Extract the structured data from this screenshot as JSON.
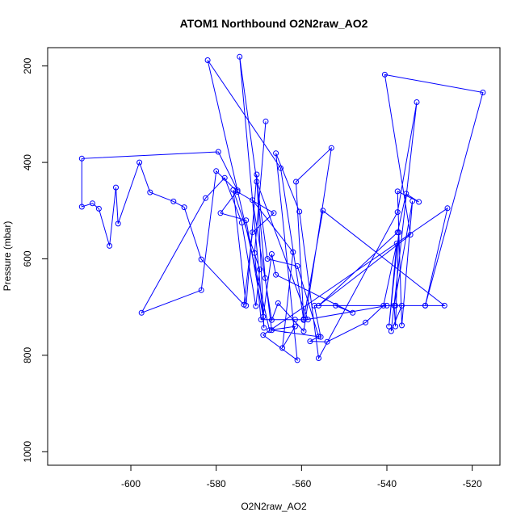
{
  "chart_data": {
    "type": "scatter",
    "title": "ATOM1 Northbound O2N2raw_AO2",
    "xlabel": "O2N2raw_AO2",
    "ylabel": "Pressure (mbar)",
    "xlim": [
      -619.5,
      -513.5
    ],
    "ylim": [
      1028,
      162
    ],
    "y_reversed": true,
    "grid": false,
    "legend": "none",
    "x_ticks": [
      -600,
      -580,
      -560,
      -540,
      -520
    ],
    "y_ticks": [
      200,
      400,
      600,
      800,
      1000
    ],
    "x_tick_labels": [
      "-600",
      "-580",
      "-560",
      "-540",
      "-520"
    ],
    "y_tick_labels": [
      "200",
      "400",
      "600",
      "800",
      "1000"
    ],
    "color": "#0000ff",
    "series": [
      {
        "values": [
          [
            -568.4,
            315
          ],
          [
            -571.0,
            588
          ],
          [
            -569.5,
            726
          ],
          [
            -561.5,
            726
          ],
          [
            -558.5,
            726
          ],
          [
            -570.5,
            440
          ],
          [
            -568.5,
            640
          ],
          [
            -567.0,
            748
          ],
          [
            -555.5,
            762
          ],
          [
            -557.0,
            697
          ],
          [
            -538.0,
            697
          ],
          [
            -526.5,
            697
          ],
          [
            -555.0,
            500
          ],
          [
            -559.5,
            725
          ],
          [
            -561.3,
            440
          ],
          [
            -553.0,
            370
          ],
          [
            -559.5,
            750
          ],
          [
            -565.5,
            692
          ],
          [
            -567.0,
            727
          ],
          [
            -571.5,
            478
          ],
          [
            -562.0,
            586
          ],
          [
            -564.5,
            785
          ],
          [
            -561.5,
            740
          ],
          [
            -567.5,
            748
          ],
          [
            -582.0,
            188
          ],
          [
            -564.9,
            412
          ],
          [
            -559.5,
            727
          ],
          [
            -540.0,
            697
          ],
          [
            -531.0,
            697
          ],
          [
            -525.8,
            495
          ],
          [
            -569.0,
            758
          ],
          [
            -561.0,
            810
          ],
          [
            -566.0,
            381
          ],
          [
            -560.5,
            502
          ],
          [
            -556.0,
            806
          ],
          [
            -537.5,
            503
          ],
          [
            -533.0,
            275
          ],
          [
            -539.0,
            750
          ],
          [
            -536.5,
            697
          ],
          [
            -531.0,
            697
          ],
          [
            -517.5,
            255
          ],
          [
            -540.5,
            218
          ],
          [
            -534.5,
            550
          ],
          [
            -556.0,
            697
          ],
          [
            -537.5,
            545
          ],
          [
            -535.5,
            465
          ],
          [
            -532.5,
            482
          ],
          [
            -537.5,
            460
          ],
          [
            -536.5,
            738
          ],
          [
            -534.0,
            480
          ],
          [
            -538.3,
            697
          ],
          [
            -538.0,
            740
          ],
          [
            -537.2,
            545
          ],
          [
            -539.5,
            740
          ],
          [
            -537.7,
            568
          ],
          [
            -540.8,
            697
          ],
          [
            -545.0,
            732
          ],
          [
            -554.0,
            772
          ],
          [
            -558.0,
            771
          ],
          [
            -556.0,
            761
          ],
          [
            -561.0,
            615
          ],
          [
            -568.0,
            600
          ],
          [
            -574.5,
            181
          ],
          [
            -568.8,
            743
          ],
          [
            -570.5,
            425
          ],
          [
            -573.0,
            697
          ],
          [
            -576.0,
            457
          ],
          [
            -569.8,
            622
          ],
          [
            -570.7,
            698
          ],
          [
            -574.0,
            525
          ],
          [
            -578.0,
            432
          ],
          [
            -582.5,
            474
          ],
          [
            -597.5,
            712
          ],
          [
            -583.5,
            665
          ],
          [
            -580.0,
            418
          ],
          [
            -575.0,
            461
          ],
          [
            -566.5,
            505
          ],
          [
            -571.5,
            545
          ],
          [
            -573.5,
            695
          ],
          [
            -583.5,
            601
          ],
          [
            -587.5,
            493
          ],
          [
            -590.0,
            481
          ],
          [
            -595.5,
            462
          ],
          [
            -598.0,
            400
          ],
          [
            -603.0,
            527
          ],
          [
            -603.5,
            452
          ],
          [
            -605.0,
            573
          ],
          [
            -607.5,
            496
          ],
          [
            -609.0,
            485
          ],
          [
            -611.5,
            492
          ],
          [
            -611.5,
            392
          ],
          [
            -579.5,
            378
          ],
          [
            -575.0,
            458
          ],
          [
            -579.0,
            505
          ],
          [
            -573.0,
            520
          ],
          [
            -569.0,
            720
          ],
          [
            -567.0,
            590
          ],
          [
            -566.0,
            633
          ],
          [
            -548.0,
            712
          ],
          [
            -552.0,
            697
          ]
        ]
      }
    ]
  }
}
